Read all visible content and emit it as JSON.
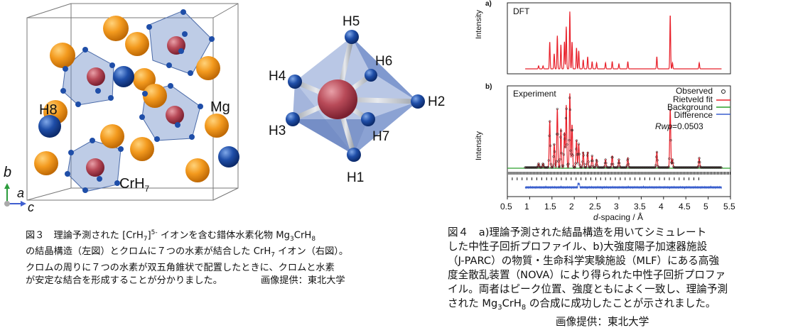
{
  "fig3": {
    "atom_labels": {
      "h8": "H8",
      "mg": "Mg",
      "crh7": "CrH",
      "crh7_sub": "7"
    },
    "axes": {
      "b": "b",
      "a": "a",
      "c": "c"
    },
    "octa_labels": {
      "h1": "H1",
      "h2": "H2",
      "h3": "H3",
      "h4": "H4",
      "h5": "H5",
      "h6": "H6",
      "h7": "H7"
    },
    "caption": {
      "l1a": "図３　理論予測された [CrH",
      "l1sub": "7",
      "l1sup": "]",
      "l1sup2": "5-",
      "l1b": " イオンを含む錯体水素化物 Mg",
      "l1sub2": "3",
      "l1c": "CrH",
      "l1sub3": "8",
      "l2a": "の結晶構造（左図）とクロムに７つの水素が結合した CrH",
      "l2sub": "7",
      "l2b": " イオン（右図）。",
      "l3": "クロムの周りに７つの水素が双五角錐状で配置したときに、クロムと水素",
      "l4a": "が安定な結合を形成することが分かりました。",
      "credit": "画像提供：東北大学"
    }
  },
  "fig4": {
    "panel_a": {
      "tag": "a)",
      "name": "DFT",
      "ylabel": "Intensity"
    },
    "panel_b": {
      "tag": "b)",
      "name": "Experiment",
      "ylabel": "Intensity",
      "legend": [
        "Observed",
        "Rietveld fit",
        "Background",
        "Difference"
      ],
      "rwp_label": "Rwp",
      "rwp_value": "=0.0503"
    },
    "xlabel_italic": "d",
    "xlabel_rest": "-spacing / Å",
    "xticks": [
      "0.5",
      "1",
      "1.5",
      "2",
      "2.5",
      "3",
      "3.5",
      "4",
      "4.5",
      "5",
      "5.5"
    ],
    "caption": {
      "l1": "図４　a)理論予測された結晶構造を用いてシミュレート",
      "l2": "した中性子回折プロファイル、b)大強度陽子加速器施設",
      "l3": "（J-PARC）の物質・生命科学実験施設（MLF）にある高強",
      "l4": "度全散乱装置（NOVA）により得られた中性子回折プロファ",
      "l5": "イル。両者はピーク位置、強度ともによく一致し、理論予測",
      "l6a": "された Mg",
      "l6sub": "3",
      "l6b": "CrH",
      "l6sub2": "8",
      "l6c": " の合成に成功したことが示されました。",
      "credit": "画像提供：東北大学"
    },
    "colors": {
      "fit": "#e8202a",
      "background": "#2ca02c",
      "difference": "#3a5fcd"
    }
  },
  "chart_data": {
    "type": "line",
    "xlabel": "d-spacing / Å",
    "ylabel": "Intensity",
    "xlim": [
      0.5,
      5.5
    ],
    "series": [
      {
        "name": "DFT",
        "x": [
          1.2,
          1.3,
          1.45,
          1.55,
          1.62,
          1.7,
          1.78,
          1.82,
          1.9,
          1.95,
          2.05,
          2.1,
          2.2,
          2.3,
          2.4,
          2.5,
          2.7,
          2.85,
          3.0,
          3.2,
          3.85,
          4.15,
          4.2,
          4.8
        ],
        "values": [
          0.05,
          0.05,
          0.45,
          0.25,
          0.55,
          0.4,
          0.45,
          0.7,
          0.95,
          0.45,
          0.35,
          0.3,
          0.15,
          0.2,
          0.12,
          0.1,
          0.1,
          0.12,
          0.08,
          0.12,
          0.2,
          0.9,
          0.1,
          0.1
        ]
      },
      {
        "name": "Observed",
        "x": [
          1.2,
          1.3,
          1.45,
          1.55,
          1.62,
          1.7,
          1.78,
          1.82,
          1.9,
          1.95,
          2.05,
          2.1,
          2.2,
          2.3,
          2.4,
          2.5,
          2.7,
          2.85,
          3.0,
          3.2,
          3.85,
          4.15,
          4.2,
          4.8
        ],
        "values": [
          0.05,
          0.05,
          0.6,
          0.3,
          0.75,
          0.5,
          0.45,
          0.8,
          0.95,
          0.55,
          0.35,
          0.3,
          0.2,
          0.2,
          0.15,
          0.1,
          0.1,
          0.15,
          0.1,
          0.12,
          0.2,
          0.75,
          0.1,
          0.12
        ]
      }
    ]
  }
}
